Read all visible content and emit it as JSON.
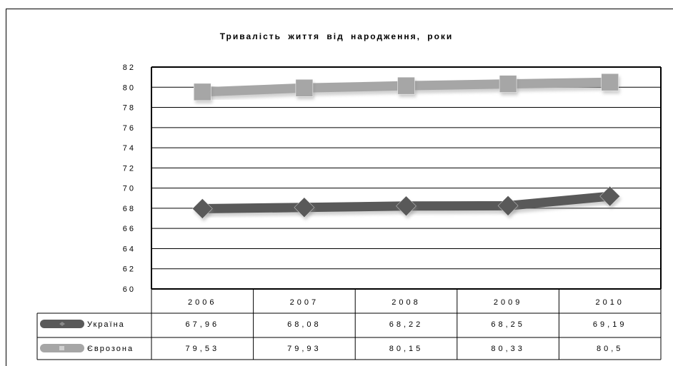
{
  "chart_data": {
    "type": "line",
    "title": "Тривалість  життя  від  народження, роки",
    "categories": [
      "2006",
      "2007",
      "2008",
      "2009",
      "2010"
    ],
    "series": [
      {
        "name": "Україна",
        "values": [
          67.96,
          68.08,
          68.22,
          68.25,
          69.19
        ],
        "labels": [
          "67,96",
          "68,08",
          "68,22",
          "68,25",
          "69,19"
        ],
        "color": "#595959",
        "marker": "diamond"
      },
      {
        "name": "Єврозона",
        "values": [
          79.53,
          79.93,
          80.15,
          80.33,
          80.5
        ],
        "labels": [
          "79,53",
          "79,93",
          "80,15",
          "80,33",
          "80,5"
        ],
        "color": "#a6a6a6",
        "marker": "square"
      }
    ],
    "ylim": [
      60,
      82
    ],
    "yticks": [
      60,
      62,
      64,
      66,
      68,
      70,
      72,
      74,
      76,
      78,
      80,
      82
    ],
    "grid": true,
    "legend": "data-table",
    "xlabel": "",
    "ylabel": ""
  }
}
